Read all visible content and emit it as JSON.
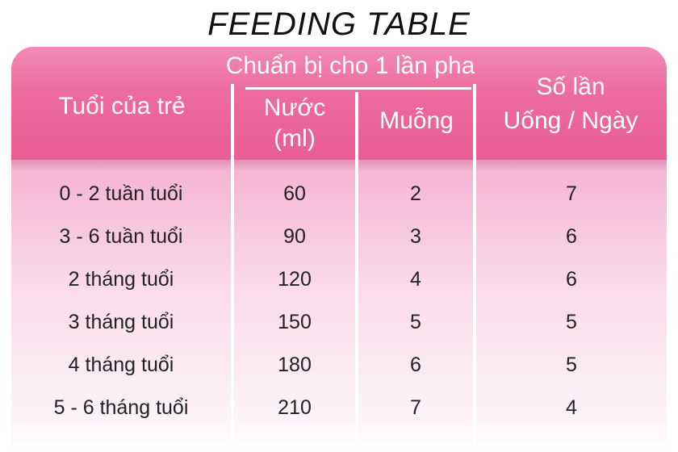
{
  "title": "FEEDING TABLE",
  "header": {
    "age": "Tuổi của trẻ",
    "prep_group": "Chuẩn bị cho 1 lần pha",
    "water_line1": "Nước",
    "water_line2": "(ml)",
    "spoons": "Muỗng",
    "times_line1": "Số lần",
    "times_line2": "Uống / Ngày"
  },
  "rows": [
    {
      "age": "0 - 2 tuần tuổi",
      "water": "60",
      "spoons": "2",
      "times": "7"
    },
    {
      "age": "3 - 6 tuần tuổi",
      "water": "90",
      "spoons": "3",
      "times": "6"
    },
    {
      "age": "2 tháng tuổi",
      "water": "120",
      "spoons": "4",
      "times": "6"
    },
    {
      "age": "3 tháng tuổi",
      "water": "150",
      "spoons": "5",
      "times": "5"
    },
    {
      "age": "4 tháng tuổi",
      "water": "180",
      "spoons": "6",
      "times": "5"
    },
    {
      "age": "5 - 6 tháng tuổi",
      "water": "210",
      "spoons": "7",
      "times": "4"
    }
  ],
  "colors": {
    "header_pink": "#e95d95",
    "panel_light_pink": "#fadbe9",
    "divider": "#ffffff",
    "text_dark": "#222222"
  }
}
